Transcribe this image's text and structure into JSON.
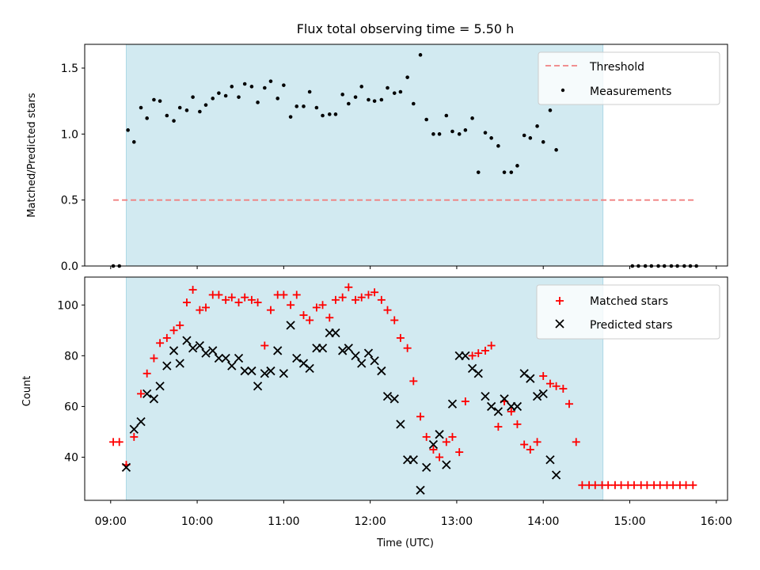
{
  "colors": {
    "shade": "#add8e6",
    "threshold": "#f08080",
    "measurement": "#000000",
    "matched": "#ff0000",
    "predicted": "#000000"
  },
  "chart_data": [
    {
      "type": "scatter",
      "title": "Flux total observing time = 5.50 h",
      "xlabel": "",
      "ylabel": "Matched/Predicted stars",
      "xlim": [
        8.7,
        16.13
      ],
      "ylim": [
        0.0,
        1.68
      ],
      "yticks": [
        0.0,
        0.5,
        1.0,
        1.5
      ],
      "ytick_labels": [
        "0.0",
        "0.5",
        "1.0",
        "1.5"
      ],
      "observing_window": [
        9.18,
        14.69
      ],
      "threshold": {
        "name": "Threshold",
        "value": 0.5,
        "x_range": [
          9.03,
          15.77
        ]
      },
      "legend": [
        "Threshold",
        "Measurements"
      ],
      "legend_position": "top-right",
      "series": [
        {
          "name": "Measurements",
          "points": [
            [
              9.03,
              0
            ],
            [
              9.1,
              0
            ],
            [
              9.2,
              1.03
            ],
            [
              9.27,
              0.94
            ],
            [
              9.35,
              1.2
            ],
            [
              9.42,
              1.12
            ],
            [
              9.5,
              1.26
            ],
            [
              9.57,
              1.25
            ],
            [
              9.65,
              1.14
            ],
            [
              9.73,
              1.1
            ],
            [
              9.8,
              1.2
            ],
            [
              9.88,
              1.18
            ],
            [
              9.95,
              1.28
            ],
            [
              10.03,
              1.17
            ],
            [
              10.1,
              1.22
            ],
            [
              10.18,
              1.27
            ],
            [
              10.25,
              1.31
            ],
            [
              10.33,
              1.29
            ],
            [
              10.4,
              1.36
            ],
            [
              10.48,
              1.28
            ],
            [
              10.55,
              1.38
            ],
            [
              10.63,
              1.36
            ],
            [
              10.7,
              1.24
            ],
            [
              10.78,
              1.35
            ],
            [
              10.85,
              1.4
            ],
            [
              10.93,
              1.27
            ],
            [
              11.0,
              1.37
            ],
            [
              11.08,
              1.13
            ],
            [
              11.15,
              1.21
            ],
            [
              11.23,
              1.21
            ],
            [
              11.3,
              1.32
            ],
            [
              11.38,
              1.2
            ],
            [
              11.45,
              1.14
            ],
            [
              11.53,
              1.15
            ],
            [
              11.6,
              1.15
            ],
            [
              11.68,
              1.3
            ],
            [
              11.75,
              1.23
            ],
            [
              11.83,
              1.28
            ],
            [
              11.9,
              1.36
            ],
            [
              11.98,
              1.26
            ],
            [
              12.05,
              1.25
            ],
            [
              12.13,
              1.26
            ],
            [
              12.2,
              1.35
            ],
            [
              12.28,
              1.31
            ],
            [
              12.35,
              1.32
            ],
            [
              12.43,
              1.43
            ],
            [
              12.5,
              1.23
            ],
            [
              12.58,
              1.6
            ],
            [
              12.65,
              1.11
            ],
            [
              12.73,
              1.0
            ],
            [
              12.8,
              1.0
            ],
            [
              12.88,
              1.14
            ],
            [
              12.95,
              1.02
            ],
            [
              13.03,
              1.0
            ],
            [
              13.1,
              1.03
            ],
            [
              13.18,
              1.12
            ],
            [
              13.25,
              0.71
            ],
            [
              13.33,
              1.01
            ],
            [
              13.4,
              0.97
            ],
            [
              13.48,
              0.91
            ],
            [
              13.55,
              0.71
            ],
            [
              13.63,
              0.71
            ],
            [
              13.7,
              0.76
            ],
            [
              13.78,
              0.99
            ],
            [
              13.85,
              0.97
            ],
            [
              13.93,
              1.06
            ],
            [
              14.0,
              0.94
            ],
            [
              14.08,
              1.18
            ],
            [
              14.15,
              0.88
            ],
            [
              15.03,
              0
            ],
            [
              15.1,
              0
            ],
            [
              15.18,
              0
            ],
            [
              15.25,
              0
            ],
            [
              15.33,
              0
            ],
            [
              15.4,
              0
            ],
            [
              15.48,
              0
            ],
            [
              15.55,
              0
            ],
            [
              15.63,
              0
            ],
            [
              15.7,
              0
            ],
            [
              15.77,
              0
            ]
          ]
        }
      ]
    },
    {
      "type": "scatter",
      "title": "",
      "xlabel": "Time (UTC)",
      "ylabel": "Count",
      "xlim": [
        8.7,
        16.13
      ],
      "ylim": [
        23,
        111
      ],
      "yticks": [
        40,
        60,
        80,
        100
      ],
      "ytick_labels": [
        "40",
        "60",
        "80",
        "100"
      ],
      "xticks": [
        9,
        10,
        11,
        12,
        13,
        14,
        15,
        16
      ],
      "xtick_labels": [
        "09:00",
        "10:00",
        "11:00",
        "12:00",
        "13:00",
        "14:00",
        "15:00",
        "16:00"
      ],
      "observing_window": [
        9.18,
        14.69
      ],
      "legend": [
        "Matched stars",
        "Predicted stars"
      ],
      "legend_position": "top-right",
      "series": [
        {
          "name": "Matched stars",
          "points": [
            [
              9.03,
              46
            ],
            [
              9.1,
              46
            ],
            [
              9.18,
              37
            ],
            [
              9.27,
              48
            ],
            [
              9.35,
              65
            ],
            [
              9.42,
              73
            ],
            [
              9.5,
              79
            ],
            [
              9.57,
              85
            ],
            [
              9.65,
              87
            ],
            [
              9.73,
              90
            ],
            [
              9.8,
              92
            ],
            [
              9.88,
              101
            ],
            [
              9.95,
              106
            ],
            [
              10.03,
              98
            ],
            [
              10.1,
              99
            ],
            [
              10.18,
              104
            ],
            [
              10.25,
              104
            ],
            [
              10.33,
              102
            ],
            [
              10.4,
              103
            ],
            [
              10.48,
              101
            ],
            [
              10.55,
              103
            ],
            [
              10.63,
              102
            ],
            [
              10.7,
              101
            ],
            [
              10.78,
              84
            ],
            [
              10.85,
              98
            ],
            [
              10.93,
              104
            ],
            [
              11.0,
              104
            ],
            [
              11.08,
              100
            ],
            [
              11.15,
              104
            ],
            [
              11.23,
              96
            ],
            [
              11.3,
              94
            ],
            [
              11.38,
              99
            ],
            [
              11.45,
              100
            ],
            [
              11.53,
              95
            ],
            [
              11.6,
              102
            ],
            [
              11.68,
              103
            ],
            [
              11.75,
              107
            ],
            [
              11.83,
              102
            ],
            [
              11.9,
              103
            ],
            [
              11.98,
              104
            ],
            [
              12.05,
              105
            ],
            [
              12.13,
              102
            ],
            [
              12.2,
              98
            ],
            [
              12.28,
              94
            ],
            [
              12.35,
              87
            ],
            [
              12.43,
              83
            ],
            [
              12.5,
              70
            ],
            [
              12.58,
              56
            ],
            [
              12.65,
              48
            ],
            [
              12.73,
              43
            ],
            [
              12.8,
              40
            ],
            [
              12.88,
              46
            ],
            [
              12.95,
              48
            ],
            [
              13.03,
              42
            ],
            [
              13.1,
              62
            ],
            [
              13.18,
              80
            ],
            [
              13.25,
              81
            ],
            [
              13.33,
              82
            ],
            [
              13.4,
              84
            ],
            [
              13.48,
              52
            ],
            [
              13.55,
              62
            ],
            [
              13.63,
              58
            ],
            [
              13.7,
              53
            ],
            [
              13.78,
              45
            ],
            [
              13.85,
              43
            ],
            [
              13.93,
              46
            ],
            [
              14.0,
              72
            ],
            [
              14.08,
              69
            ],
            [
              14.15,
              68
            ],
            [
              14.23,
              67
            ],
            [
              14.3,
              61
            ],
            [
              14.38,
              46
            ],
            [
              14.45,
              29
            ],
            [
              14.53,
              29
            ],
            [
              14.6,
              29
            ],
            [
              14.68,
              29
            ],
            [
              14.75,
              29
            ],
            [
              14.83,
              29
            ],
            [
              14.9,
              29
            ],
            [
              14.98,
              29
            ],
            [
              15.05,
              29
            ],
            [
              15.13,
              29
            ],
            [
              15.2,
              29
            ],
            [
              15.28,
              29
            ],
            [
              15.35,
              29
            ],
            [
              15.43,
              29
            ],
            [
              15.5,
              29
            ],
            [
              15.58,
              29
            ],
            [
              15.65,
              29
            ],
            [
              15.73,
              29
            ]
          ]
        },
        {
          "name": "Predicted stars",
          "points": [
            [
              9.18,
              36
            ],
            [
              9.27,
              51
            ],
            [
              9.35,
              54
            ],
            [
              9.42,
              65
            ],
            [
              9.5,
              63
            ],
            [
              9.57,
              68
            ],
            [
              9.65,
              76
            ],
            [
              9.73,
              82
            ],
            [
              9.8,
              77
            ],
            [
              9.88,
              86
            ],
            [
              9.95,
              83
            ],
            [
              10.03,
              84
            ],
            [
              10.1,
              81
            ],
            [
              10.18,
              82
            ],
            [
              10.25,
              79
            ],
            [
              10.33,
              79
            ],
            [
              10.4,
              76
            ],
            [
              10.48,
              79
            ],
            [
              10.55,
              74
            ],
            [
              10.63,
              74
            ],
            [
              10.7,
              68
            ],
            [
              10.78,
              73
            ],
            [
              10.85,
              74
            ],
            [
              10.93,
              82
            ],
            [
              11.0,
              73
            ],
            [
              11.08,
              92
            ],
            [
              11.15,
              79
            ],
            [
              11.23,
              77
            ],
            [
              11.3,
              75
            ],
            [
              11.38,
              83
            ],
            [
              11.45,
              83
            ],
            [
              11.53,
              89
            ],
            [
              11.6,
              89
            ],
            [
              11.68,
              82
            ],
            [
              11.75,
              83
            ],
            [
              11.83,
              80
            ],
            [
              11.9,
              77
            ],
            [
              11.98,
              81
            ],
            [
              12.05,
              78
            ],
            [
              12.13,
              74
            ],
            [
              12.2,
              64
            ],
            [
              12.28,
              63
            ],
            [
              12.35,
              53
            ],
            [
              12.43,
              39
            ],
            [
              12.5,
              39
            ],
            [
              12.58,
              27
            ],
            [
              12.65,
              36
            ],
            [
              12.73,
              45
            ],
            [
              12.8,
              49
            ],
            [
              12.88,
              37
            ],
            [
              12.95,
              61
            ],
            [
              13.03,
              80
            ],
            [
              13.1,
              80
            ],
            [
              13.18,
              75
            ],
            [
              13.25,
              73
            ],
            [
              13.33,
              64
            ],
            [
              13.4,
              60
            ],
            [
              13.48,
              58
            ],
            [
              13.55,
              63
            ],
            [
              13.63,
              60
            ],
            [
              13.7,
              60
            ],
            [
              13.78,
              73
            ],
            [
              13.85,
              71
            ],
            [
              13.93,
              64
            ],
            [
              14.0,
              65
            ],
            [
              14.08,
              39
            ],
            [
              14.15,
              33
            ]
          ]
        }
      ]
    }
  ]
}
